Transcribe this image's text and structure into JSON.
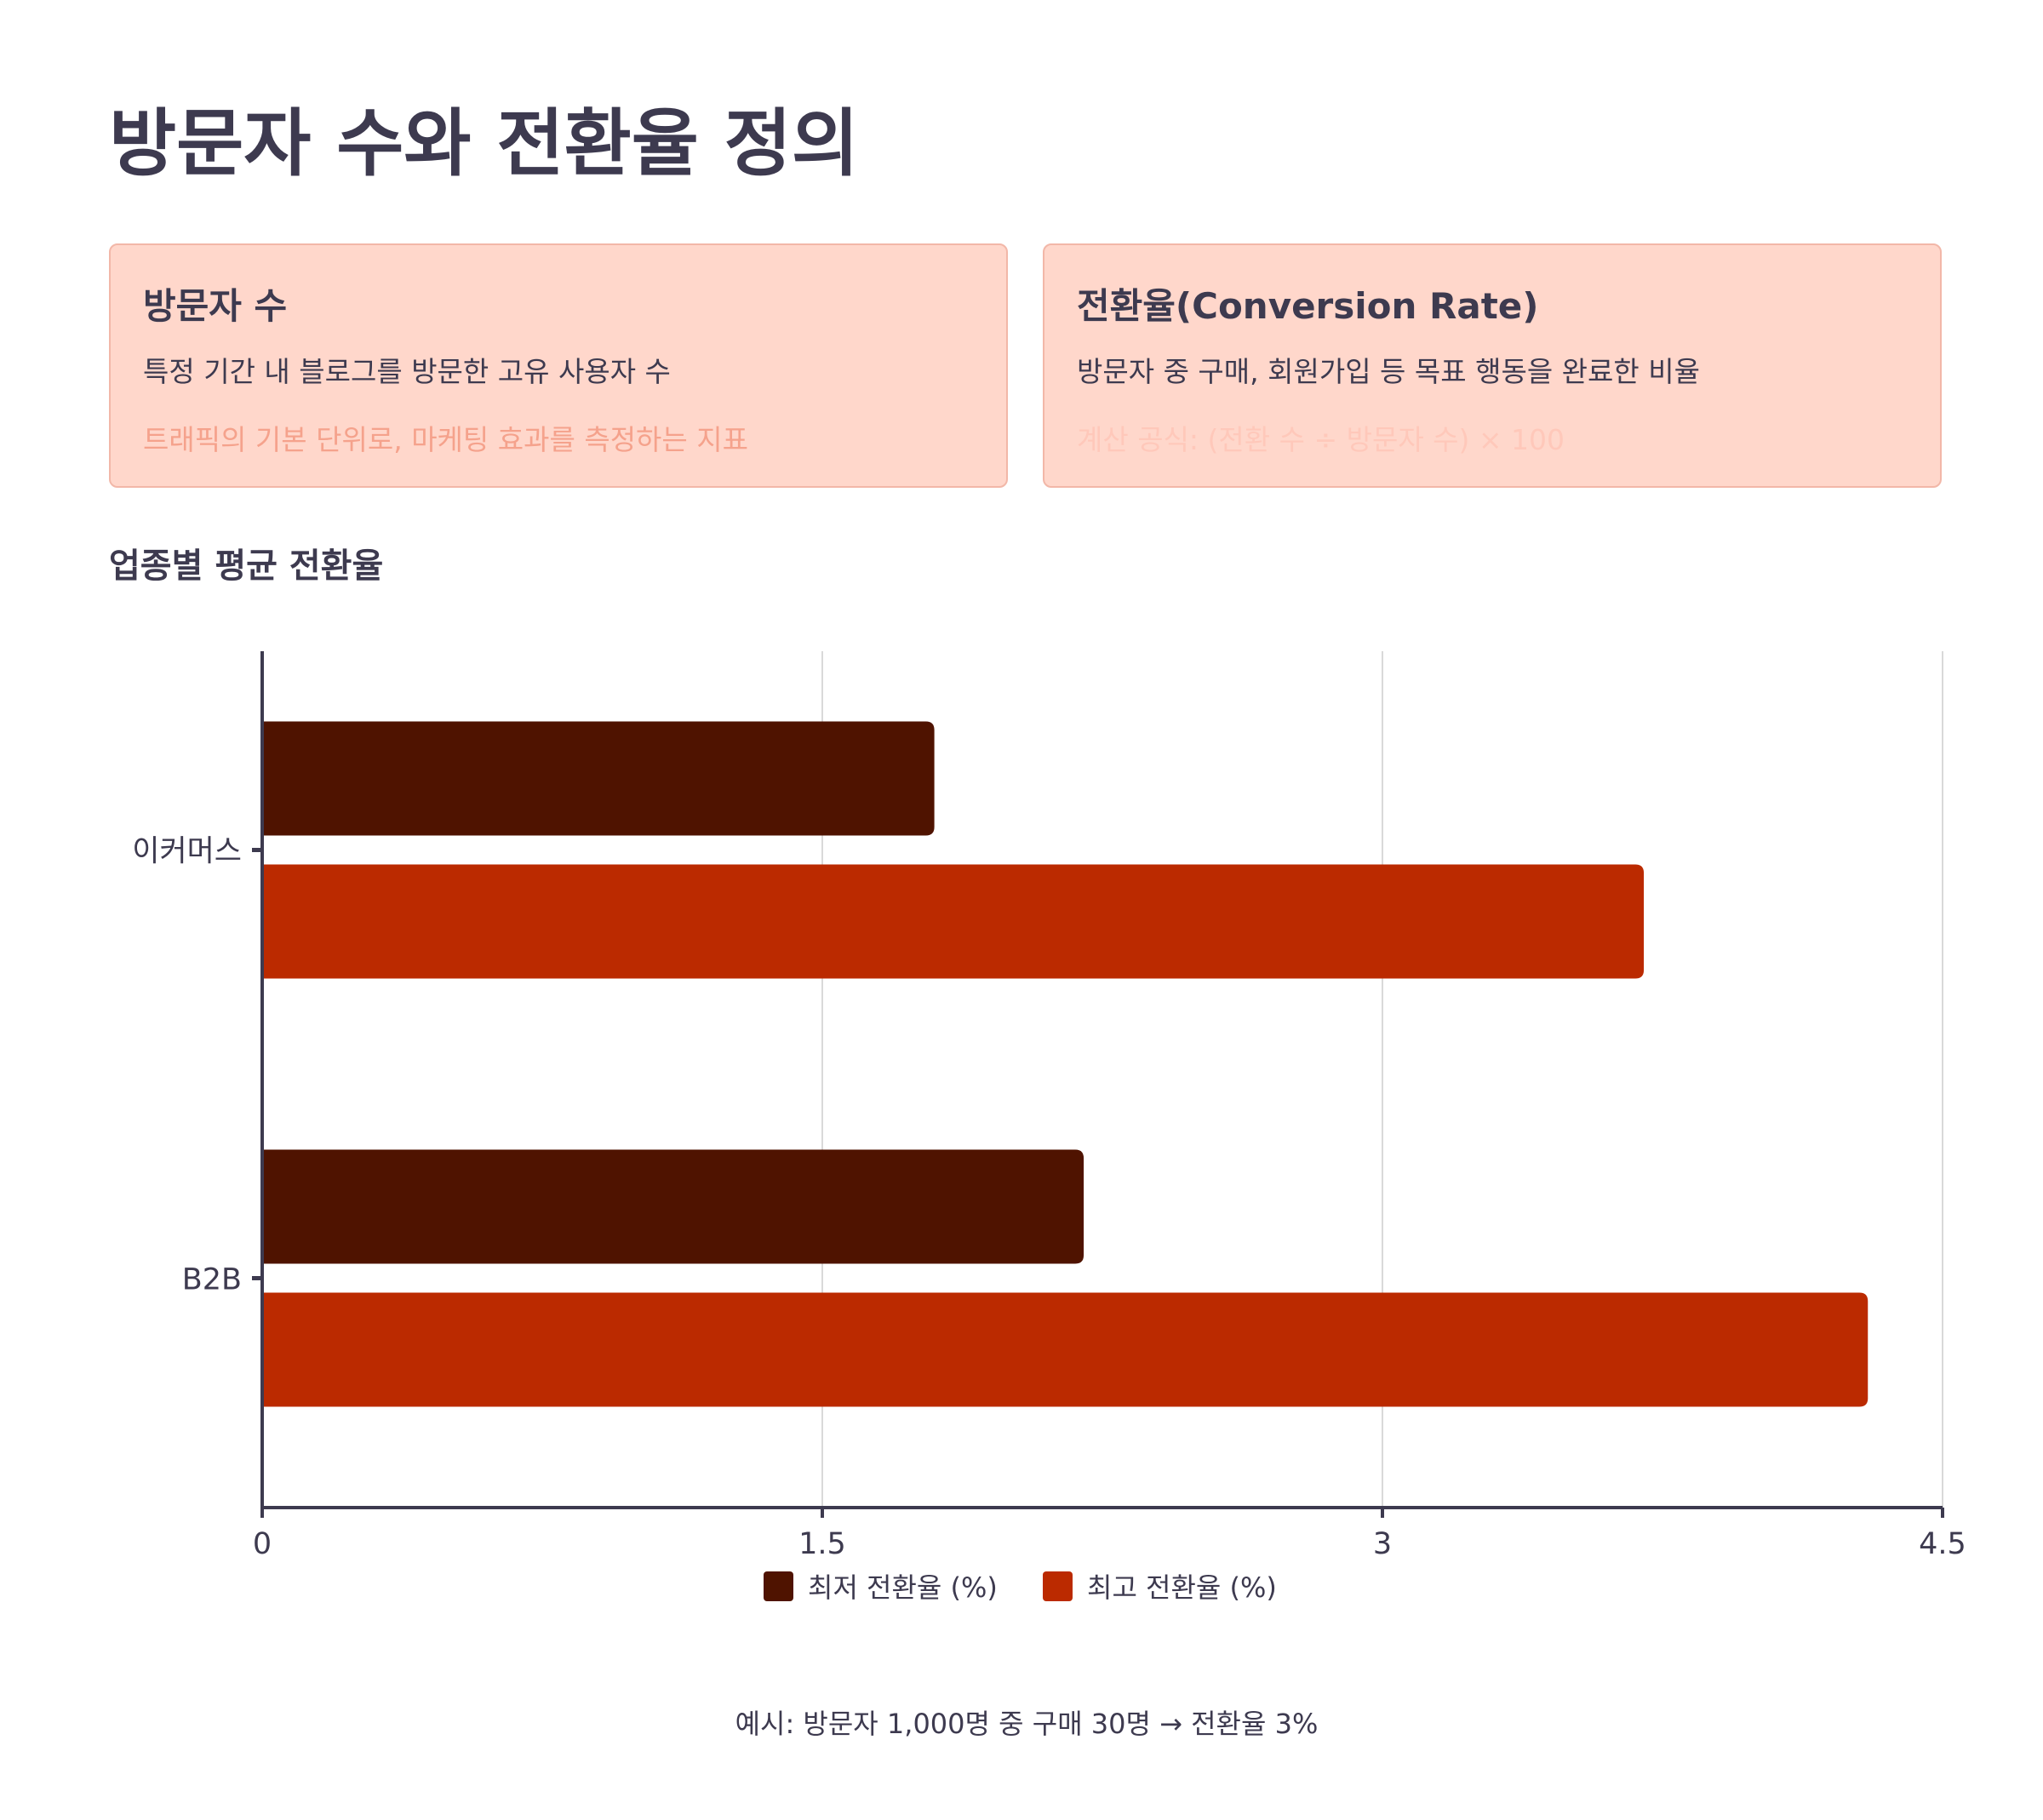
{
  "title": "방문자 수와 전환율 정의",
  "cards": [
    {
      "heading": "방문자 수",
      "description": "특정 기간 내 블로그를 방문한 고유 사용자 수",
      "highlight": "트래픽의 기본 단위로, 마케팅 효과를 측정하는 지표"
    },
    {
      "heading": "전환율(Conversion Rate)",
      "description": "방문자 중 구매, 회원가입 등 목표 행동을 완료한 비율",
      "highlight": "계산 공식: (전환 수 ÷ 방문자 수) × 100"
    }
  ],
  "section_title": "업종별 평균 전환율",
  "chart_data": {
    "type": "bar",
    "orientation": "horizontal",
    "title": "업종별 평균 전환율",
    "categories": [
      "이커머스",
      "B2B"
    ],
    "series": [
      {
        "name": "최저 전환율 (%)",
        "values": [
          1.8,
          2.2
        ],
        "color": "#4f1300"
      },
      {
        "name": "최고 전환율 (%)",
        "values": [
          3.7,
          4.3
        ],
        "color": "#bb2a00"
      }
    ],
    "xlim": [
      0,
      4.5
    ],
    "xticks": [
      0,
      1.5,
      3,
      4.5
    ],
    "xtick_labels": [
      "0",
      "1.5",
      "3",
      "4.5"
    ],
    "grid": true,
    "legend_position": "bottom"
  },
  "footer": "예시: 방문자 1,000명 중 구매 30명 → 전환율 3%"
}
